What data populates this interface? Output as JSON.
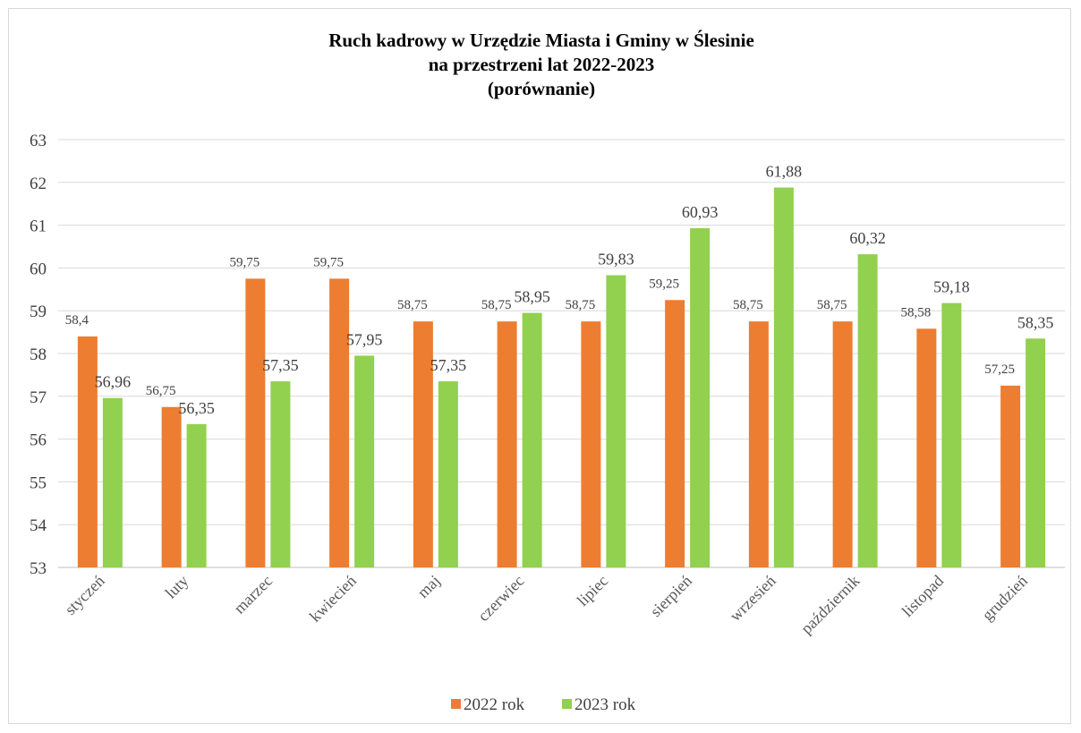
{
  "chart_data": {
    "type": "bar",
    "title_lines": [
      "Ruch kadrowy w Urzędzie Miasta i Gminy w Ślesinie",
      "na przestrzeni lat 2022-2023",
      "(porównanie)"
    ],
    "categories": [
      "styczeń",
      "luty",
      "marzec",
      "kwiecień",
      "maj",
      "czerwiec",
      "lipiec",
      "sierpień",
      "wrzesień",
      "październik",
      "listopad",
      "grudzień"
    ],
    "series": [
      {
        "name": "2022 rok",
        "color": "#ed7d31",
        "values": [
          58.4,
          56.75,
          59.75,
          59.75,
          58.75,
          58.75,
          58.75,
          59.25,
          58.75,
          58.75,
          58.58,
          57.25
        ],
        "labels": [
          "58,4",
          "56,75",
          "59,75",
          "59,75",
          "58,75",
          "58,75",
          "58,75",
          "59,25",
          "58,75",
          "58,75",
          "58,58",
          "57,25"
        ]
      },
      {
        "name": "2023 rok",
        "color": "#92d050",
        "values": [
          56.96,
          56.35,
          57.35,
          57.95,
          57.35,
          58.95,
          59.83,
          60.93,
          61.88,
          60.32,
          59.18,
          58.35
        ],
        "labels": [
          "56,96",
          "56,35",
          "57,35",
          "57,95",
          "57,35",
          "58,95",
          "59,83",
          "60,93",
          "61,88",
          "60,32",
          "59,18",
          "58,35"
        ]
      }
    ],
    "ylim": [
      53,
      63
    ],
    "yticks": [
      "53",
      "54",
      "55",
      "56",
      "57",
      "58",
      "59",
      "60",
      "61",
      "62",
      "63"
    ],
    "grid": true,
    "legend_position": "bottom"
  }
}
